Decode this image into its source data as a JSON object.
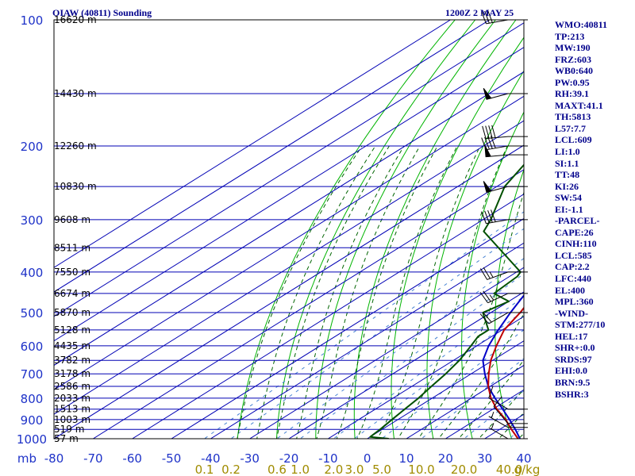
{
  "header": {
    "station": "OIAW (40811) Sounding",
    "time": "1200Z  2 MAY 25"
  },
  "indices": [
    "WMO:40811",
    "TP:213",
    "MW:190",
    "FRZ:603",
    "WB0:640",
    "PW:0.95",
    "RH:39.1",
    "MAXT:41.1",
    "TH:5813",
    "L57:7.7",
    "LCL:609",
    "LI:1.0",
    "SI:1.1",
    "TT:48",
    "KI:26",
    "SW:54",
    "EI:-1.1",
    "-PARCEL-",
    "CAPE:26",
    "CINH:110",
    "LCL:585",
    "CAP:2.2",
    "LFC:440",
    "EL:400",
    "MPL:360",
    "-WIND-",
    "STM:277/10",
    "HEL:17",
    "SHR+:0.0",
    "SRDS:97",
    "EHI:0.0",
    "BRN:9.5",
    "BSHR:3"
  ],
  "colors": {
    "text": "#00008b",
    "isobar": "#0000b4",
    "dry_adiabat": "#00b400",
    "moist_adiabat": "#006400",
    "mixing_ratio": "#4682d2",
    "mixing_label": "#a08c00",
    "temperature": "#c00000",
    "dewpoint": "#005000",
    "parcel": "#0000c8",
    "axis_label": "#1e32c8",
    "frame": "#000000"
  },
  "chart_data": {
    "type": "skew-t",
    "pressure_unit": "mb",
    "xlim": [
      -80,
      40
    ],
    "ylim": [
      1000,
      100
    ],
    "pressure_ticks": [
      100,
      200,
      300,
      400,
      500,
      600,
      700,
      800,
      900,
      1000
    ],
    "temperature_ticks": [
      -80,
      -70,
      -60,
      -50,
      -40,
      -30,
      -20,
      -10,
      0,
      10,
      20,
      30,
      40
    ],
    "height_labels": [
      {
        "p": 100,
        "text": "16620 m"
      },
      {
        "p": 150,
        "text": "14430 m"
      },
      {
        "p": 200,
        "text": "12260 m"
      },
      {
        "p": 250,
        "text": "10830 m"
      },
      {
        "p": 300,
        "text": "9608 m"
      },
      {
        "p": 350,
        "text": "8511 m"
      },
      {
        "p": 400,
        "text": "7550 m"
      },
      {
        "p": 450,
        "text": "6674 m"
      },
      {
        "p": 500,
        "text": "5870 m"
      },
      {
        "p": 550,
        "text": "5128 m"
      },
      {
        "p": 600,
        "text": "4435 m"
      },
      {
        "p": 650,
        "text": "3782 m"
      },
      {
        "p": 700,
        "text": "3178 m"
      },
      {
        "p": 750,
        "text": "2586 m"
      },
      {
        "p": 800,
        "text": "2033 m"
      },
      {
        "p": 850,
        "text": "1513 m"
      },
      {
        "p": 900,
        "text": "1003 m"
      },
      {
        "p": 950,
        "text": "519 m"
      },
      {
        "p": 1000,
        "text": "57 m"
      }
    ],
    "mixing_ratios": [
      {
        "value": 0.1,
        "label": "0.1"
      },
      {
        "value": 0.2,
        "label": "0.2"
      },
      {
        "value": 0.6,
        "label": "0.6"
      },
      {
        "value": 1.0,
        "label": "1.0"
      },
      {
        "value": 2.0,
        "label": "2.0"
      },
      {
        "value": 3.0,
        "label": "3.0"
      },
      {
        "value": 5.0,
        "label": "5.0"
      },
      {
        "value": 10.0,
        "label": "10.0"
      },
      {
        "value": 20.0,
        "label": "20.0"
      },
      {
        "value": 40.0,
        "label": "40.0"
      }
    ],
    "mixing_unit": "g/kg",
    "temperature": [
      {
        "p": 1000,
        "t": 38.5
      },
      {
        "p": 950,
        "t": 33.0
      },
      {
        "p": 900,
        "t": 27.5
      },
      {
        "p": 850,
        "t": 21.0
      },
      {
        "p": 800,
        "t": 15.0
      },
      {
        "p": 750,
        "t": 9.5
      },
      {
        "p": 700,
        "t": 4.5
      },
      {
        "p": 650,
        "t": -0.5
      },
      {
        "p": 600,
        "t": -5.0
      },
      {
        "p": 550,
        "t": -9.5
      },
      {
        "p": 500,
        "t": -12.5
      },
      {
        "p": 450,
        "t": -16.5
      },
      {
        "p": 400,
        "t": -21.5
      },
      {
        "p": 350,
        "t": -28.5
      },
      {
        "p": 300,
        "t": -37.0
      },
      {
        "p": 250,
        "t": -47.0
      },
      {
        "p": 220,
        "t": -53.0
      },
      {
        "p": 205,
        "t": -55.0
      },
      {
        "p": 200,
        "t": -54.0
      },
      {
        "p": 185,
        "t": -51.0
      },
      {
        "p": 175,
        "t": -50.0
      },
      {
        "p": 150,
        "t": -55.0
      },
      {
        "p": 125,
        "t": -60.0
      },
      {
        "p": 100,
        "t": -68.0
      }
    ],
    "dewpoint": [
      {
        "p": 1000,
        "t": 5.5
      },
      {
        "p": 990,
        "t": 0.0
      },
      {
        "p": 950,
        "t": -0.5
      },
      {
        "p": 900,
        "t": -1.5
      },
      {
        "p": 850,
        "t": -2.5
      },
      {
        "p": 800,
        "t": -3.5
      },
      {
        "p": 750,
        "t": -5.0
      },
      {
        "p": 700,
        "t": -6.5
      },
      {
        "p": 650,
        "t": -8.5
      },
      {
        "p": 600,
        "t": -11.5
      },
      {
        "p": 570,
        "t": -13.5
      },
      {
        "p": 550,
        "t": -13.5
      },
      {
        "p": 500,
        "t": -22.0
      },
      {
        "p": 470,
        "t": -20.0
      },
      {
        "p": 450,
        "t": -27.0
      },
      {
        "p": 430,
        "t": -27.5
      },
      {
        "p": 410,
        "t": -28.0
      },
      {
        "p": 400,
        "t": -29.0
      },
      {
        "p": 320,
        "t": -55.0
      },
      {
        "p": 300,
        "t": -58.0
      },
      {
        "p": 250,
        "t": -68.0
      },
      {
        "p": 215,
        "t": -73.0
      },
      {
        "p": 200,
        "t": -71.0
      },
      {
        "p": 190,
        "t": -67.0
      },
      {
        "p": 180,
        "t": -66.0
      },
      {
        "p": 170,
        "t": -69.0
      },
      {
        "p": 150,
        "t": -73.0
      },
      {
        "p": 140,
        "t": -76.0
      }
    ],
    "parcel": [
      {
        "p": 1000,
        "t": 39.0
      },
      {
        "p": 950,
        "t": 34.0
      },
      {
        "p": 900,
        "t": 28.5
      },
      {
        "p": 850,
        "t": 22.5
      },
      {
        "p": 800,
        "t": 16.0
      },
      {
        "p": 750,
        "t": 9.5
      },
      {
        "p": 700,
        "t": 3.5
      },
      {
        "p": 650,
        "t": -2.5
      },
      {
        "p": 600,
        "t": -7.0
      },
      {
        "p": 550,
        "t": -11.0
      },
      {
        "p": 500,
        "t": -15.0
      },
      {
        "p": 450,
        "t": -19.0
      },
      {
        "p": 400,
        "t": -24.0
      },
      {
        "p": 350,
        "t": -30.0
      },
      {
        "p": 300,
        "t": -37.0
      },
      {
        "p": 250,
        "t": -46.0
      },
      {
        "p": 200,
        "t": -57.0
      },
      {
        "p": 170,
        "t": -64.0
      },
      {
        "p": 150,
        "t": -69.0
      },
      {
        "p": 125,
        "t": -76.0
      }
    ],
    "wind_barbs": [
      {
        "p": 100,
        "dir": 260,
        "kt": 30
      },
      {
        "p": 150,
        "dir": 255,
        "kt": 50
      },
      {
        "p": 190,
        "dir": 265,
        "kt": 40
      },
      {
        "p": 200,
        "dir": 260,
        "kt": 40
      },
      {
        "p": 210,
        "dir": 265,
        "kt": 50
      },
      {
        "p": 250,
        "dir": 255,
        "kt": 50
      },
      {
        "p": 300,
        "dir": 260,
        "kt": 40
      },
      {
        "p": 400,
        "dir": 250,
        "kt": 25
      },
      {
        "p": 450,
        "dir": 245,
        "kt": 25
      },
      {
        "p": 500,
        "dir": 240,
        "kt": 20
      },
      {
        "p": 850,
        "dir": 300,
        "kt": 10
      },
      {
        "p": 920,
        "dir": 320,
        "kt": 10
      },
      {
        "p": 940,
        "dir": 300,
        "kt": 5
      },
      {
        "p": 1000,
        "dir": 300,
        "kt": 5
      }
    ]
  }
}
